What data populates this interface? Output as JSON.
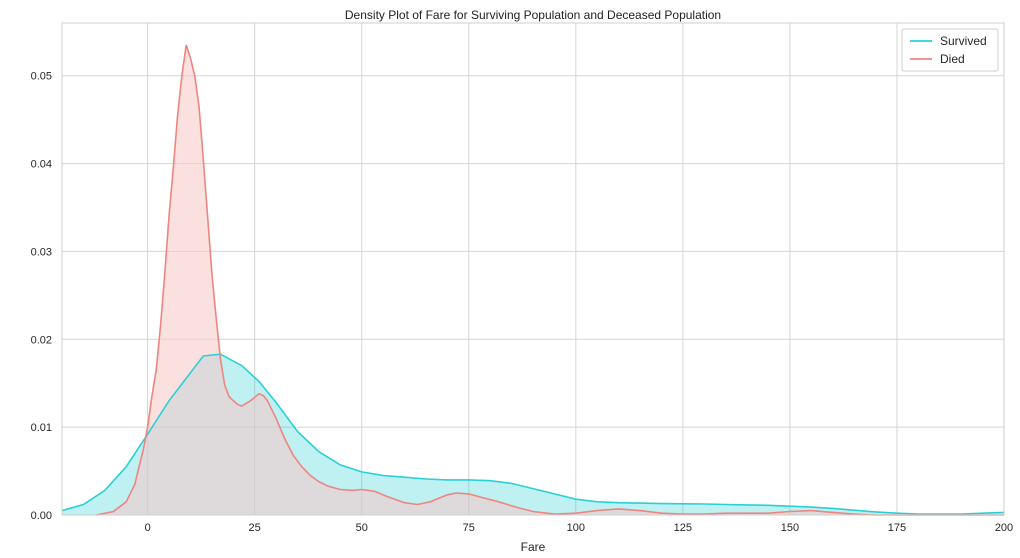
{
  "chart_data": {
    "type": "area",
    "title": "Density Plot of Fare for Surviving Population and Deceased Population",
    "xlabel": "Fare",
    "ylabel": "",
    "xlim": [
      -20,
      200
    ],
    "ylim": [
      0,
      0.056
    ],
    "xticks": [
      0,
      25,
      50,
      75,
      100,
      125,
      150,
      175,
      200
    ],
    "xtick_labels": [
      "0",
      "25",
      "50",
      "75",
      "100",
      "125",
      "150",
      "175",
      "200"
    ],
    "yticks": [
      0.0,
      0.01,
      0.02,
      0.03,
      0.04,
      0.05
    ],
    "ytick_labels": [
      "0.00",
      "0.01",
      "0.02",
      "0.03",
      "0.04",
      "0.05"
    ],
    "grid": true,
    "legend_position": "top-right",
    "series": [
      {
        "name": "Survived",
        "color": "#2ad0d6",
        "fill": "#2ad0d6",
        "x": [
          -20,
          -15,
          -10,
          -5,
          0,
          5,
          10,
          13,
          17,
          22,
          26,
          30,
          35,
          40,
          45,
          50,
          55,
          60,
          65,
          70,
          75,
          80,
          85,
          90,
          95,
          100,
          105,
          110,
          115,
          120,
          125,
          130,
          135,
          140,
          145,
          150,
          155,
          160,
          165,
          170,
          175,
          180,
          185,
          190,
          195,
          200
        ],
        "y": [
          0.0005,
          0.0012,
          0.0028,
          0.0055,
          0.0092,
          0.013,
          0.0162,
          0.0181,
          0.0183,
          0.017,
          0.0152,
          0.0128,
          0.0095,
          0.0072,
          0.0057,
          0.0049,
          0.0045,
          0.0043,
          0.0041,
          0.004,
          0.004,
          0.0039,
          0.0036,
          0.003,
          0.0024,
          0.0018,
          0.0015,
          0.0014,
          0.00135,
          0.0013,
          0.00128,
          0.00125,
          0.0012,
          0.00115,
          0.0011,
          0.001,
          0.0009,
          0.00075,
          0.00055,
          0.00035,
          0.0002,
          0.0001,
          0.0001,
          0.0001,
          0.0002,
          0.0003
        ]
      },
      {
        "name": "Died",
        "color": "#ee8580",
        "fill": "#f7c6c6",
        "x": [
          -12,
          -8,
          -5,
          -3,
          -1,
          0,
          1,
          2,
          3,
          4,
          5,
          6,
          7,
          8,
          9,
          10,
          11,
          12,
          13,
          14,
          15,
          16,
          17,
          18,
          19,
          20,
          21,
          22,
          23,
          24,
          25,
          26,
          27,
          28,
          30,
          32,
          34,
          36,
          38,
          40,
          42,
          45,
          48,
          50,
          53,
          56,
          60,
          63,
          66,
          70,
          72,
          75,
          78,
          82,
          86,
          90,
          95,
          100,
          105,
          110,
          115,
          120,
          125,
          130,
          135,
          140,
          145,
          150,
          155,
          160,
          165,
          170,
          175,
          180,
          185,
          190,
          195,
          200
        ],
        "y": [
          0.0,
          0.0004,
          0.0015,
          0.0035,
          0.0075,
          0.01,
          0.0135,
          0.0165,
          0.0215,
          0.0275,
          0.034,
          0.0395,
          0.0455,
          0.05,
          0.0535,
          0.052,
          0.05,
          0.0465,
          0.0405,
          0.034,
          0.0275,
          0.0225,
          0.0178,
          0.0148,
          0.0135,
          0.013,
          0.0126,
          0.0124,
          0.0127,
          0.013,
          0.0134,
          0.0138,
          0.0136,
          0.013,
          0.011,
          0.0087,
          0.0068,
          0.0055,
          0.0045,
          0.0038,
          0.0033,
          0.0029,
          0.0028,
          0.0029,
          0.0027,
          0.0021,
          0.0014,
          0.0012,
          0.0015,
          0.0023,
          0.0025,
          0.0024,
          0.002,
          0.0015,
          0.0009,
          0.0004,
          0.0001,
          0.0002,
          0.0005,
          0.0007,
          0.0005,
          0.0002,
          0.0001,
          0.0001,
          0.0002,
          0.0002,
          0.0002,
          0.0004,
          0.0005,
          0.0003,
          0.0001,
          0.0,
          0.0,
          0.0,
          0.0,
          0.0,
          0.0,
          0.0
        ]
      }
    ]
  }
}
